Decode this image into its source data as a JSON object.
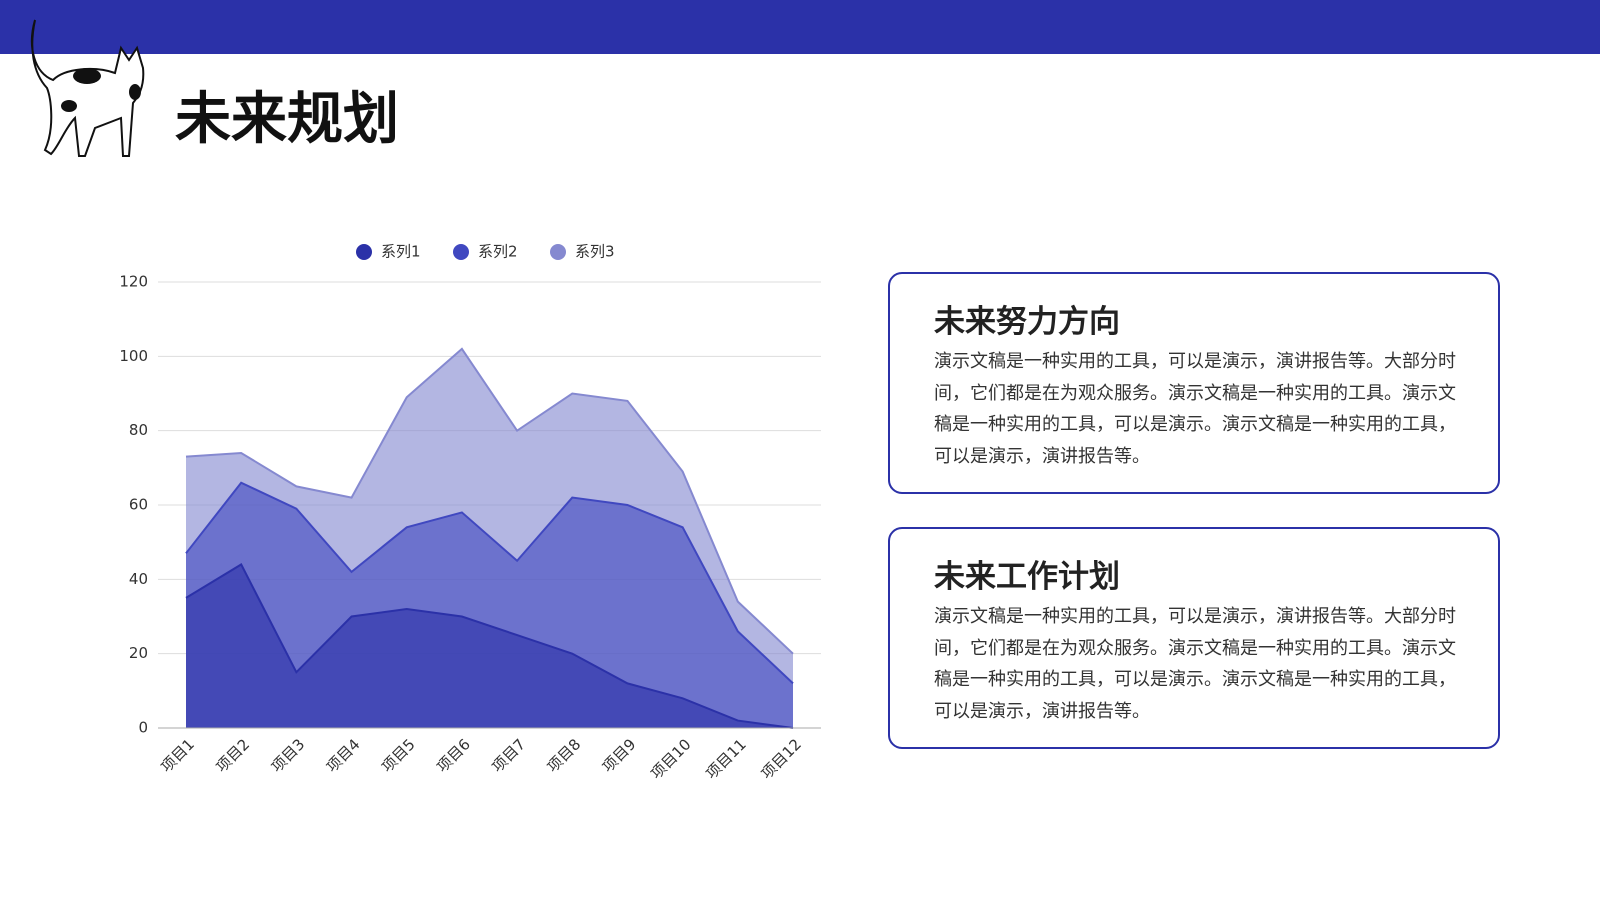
{
  "header": {
    "title": "未来规划"
  },
  "chart_data": {
    "type": "area",
    "categories": [
      "项目1",
      "项目2",
      "项目3",
      "项目4",
      "项目5",
      "项目6",
      "项目7",
      "项目8",
      "项目9",
      "项目10",
      "项目11",
      "项目12"
    ],
    "series": [
      {
        "name": "系列1",
        "color": "#2b31a8",
        "values": [
          35,
          44,
          15,
          30,
          32,
          30,
          25,
          20,
          12,
          8,
          2,
          0
        ]
      },
      {
        "name": "系列2",
        "color": "#4048c0",
        "values": [
          47,
          66,
          59,
          42,
          54,
          58,
          45,
          62,
          60,
          54,
          26,
          12
        ]
      },
      {
        "name": "系列3",
        "color": "#8589d0",
        "values": [
          73,
          74,
          65,
          62,
          89,
          102,
          80,
          90,
          88,
          69,
          34,
          20
        ]
      }
    ],
    "ylim": [
      0,
      120
    ],
    "yticks": [
      0,
      20,
      40,
      60,
      80,
      100,
      120
    ],
    "grid": true,
    "legend": "top"
  },
  "cards": [
    {
      "title": "未来努力方向",
      "body": "演示文稿是一种实用的工具，可以是演示，演讲报告等。大部分时间，它们都是在为观众服务。演示文稿是一种实用的工具。演示文稿是一种实用的工具，可以是演示。演示文稿是一种实用的工具，可以是演示，演讲报告等。"
    },
    {
      "title": "未来工作计划",
      "body": "演示文稿是一种实用的工具，可以是演示，演讲报告等。大部分时间，它们都是在为观众服务。演示文稿是一种实用的工具。演示文稿是一种实用的工具，可以是演示。演示文稿是一种实用的工具，可以是演示，演讲报告等。"
    }
  ]
}
